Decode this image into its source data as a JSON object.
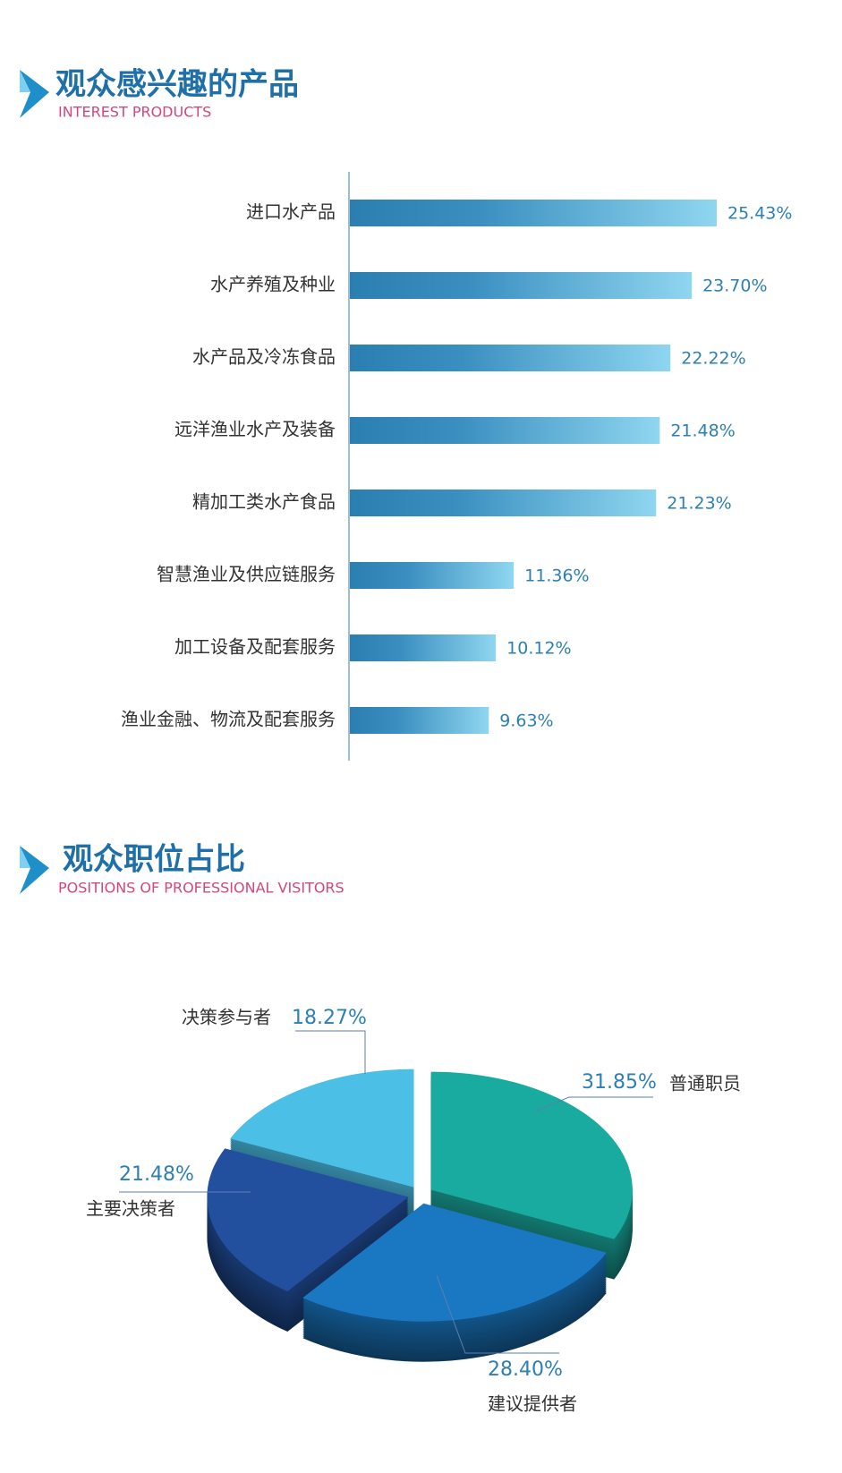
{
  "chart_data": [
    {
      "type": "bar",
      "orientation": "horizontal",
      "title": "观众感兴趣的产品",
      "subtitle": "INTEREST PRODUCTS",
      "categories": [
        "进口水产品",
        "水产养殖及种业",
        "水产品及冷冻食品",
        "远洋渔业水产及装备",
        "精加工类水产食品",
        "智慧渔业及供应链服务",
        "加工设备及配套服务",
        "渔业金融、物流及配套服务"
      ],
      "values": [
        25.43,
        23.7,
        22.22,
        21.48,
        21.23,
        11.36,
        10.12,
        9.63
      ],
      "value_labels": [
        "25.43%",
        "23.70%",
        "22.22%",
        "21.48%",
        "21.23%",
        "11.36%",
        "10.12%",
        "9.63%"
      ],
      "color": "#2a7fb0"
    },
    {
      "type": "pie",
      "title": "观众职位占比",
      "subtitle": "POSITIONS OF PROFESSIONAL VISITORS",
      "categories": [
        "普通职员",
        "建议提供者",
        "主要决策者",
        "决策参与者"
      ],
      "values": [
        31.85,
        28.4,
        21.48,
        18.27
      ],
      "value_labels": [
        "31.85%",
        "28.40%",
        "21.48%",
        "18.27%"
      ],
      "colors": [
        "#1aaba0",
        "#1a78c2",
        "#22509e",
        "#4bbfe6"
      ]
    }
  ]
}
